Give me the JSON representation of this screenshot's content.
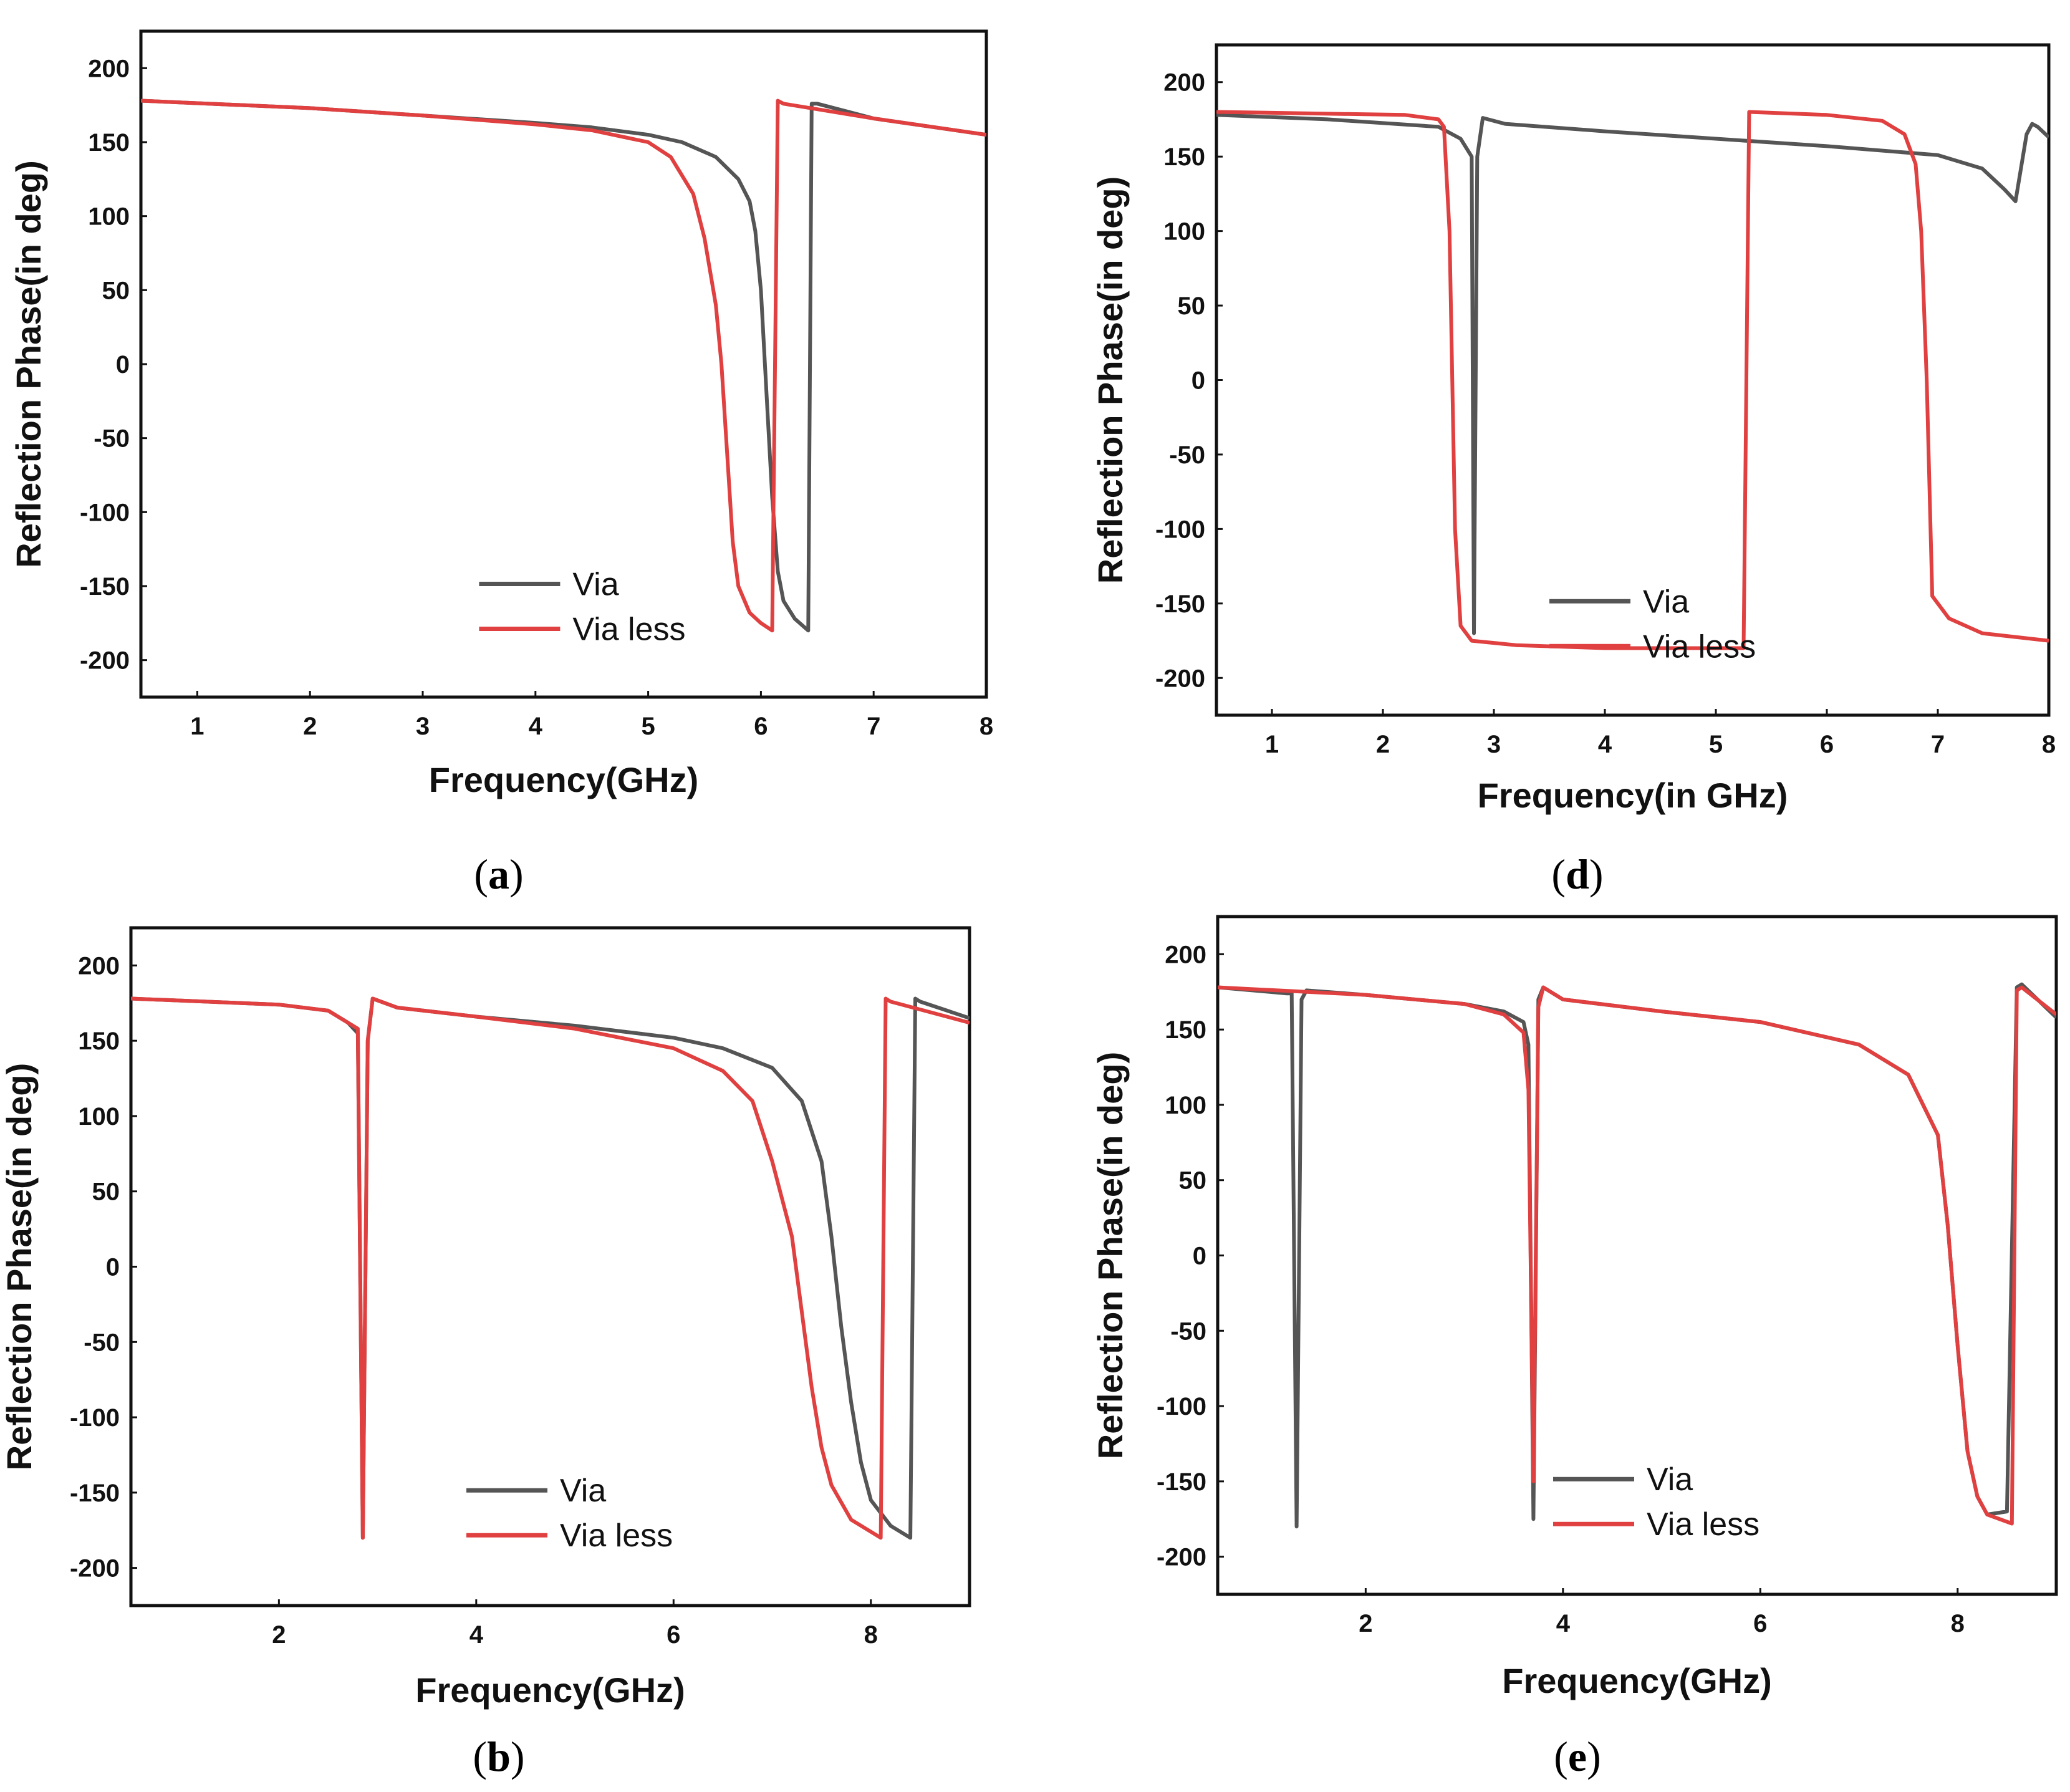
{
  "chart_data": [
    {
      "id": "a",
      "type": "line",
      "caption_letter": "a",
      "xlabel": "Frequency(GHz)",
      "ylabel": "Reflection Phase(in deg)",
      "xlim": [
        0.5,
        8
      ],
      "ylim": [
        -225,
        225
      ],
      "xticks": [
        1,
        2,
        3,
        4,
        5,
        6,
        7,
        8
      ],
      "yticks": [
        200,
        150,
        100,
        50,
        0,
        -50,
        -100,
        -150,
        -200
      ],
      "legend": "bottom-right",
      "series": [
        {
          "name": "Via",
          "color": "#555555",
          "x": [
            0.5,
            2,
            3,
            4,
            4.5,
            5,
            5.3,
            5.6,
            5.8,
            5.9,
            5.95,
            6.0,
            6.05,
            6.1,
            6.15,
            6.2,
            6.3,
            6.42,
            6.45,
            6.5,
            7,
            8
          ],
          "y": [
            178,
            173,
            168,
            163,
            160,
            155,
            150,
            140,
            125,
            110,
            90,
            50,
            -20,
            -90,
            -140,
            -160,
            -172,
            -180,
            176,
            176,
            166,
            155
          ]
        },
        {
          "name": "Via less",
          "color": "#e04040",
          "x": [
            0.5,
            2,
            3,
            4,
            4.5,
            5,
            5.2,
            5.4,
            5.5,
            5.6,
            5.65,
            5.7,
            5.75,
            5.8,
            5.9,
            6.0,
            6.1,
            6.15,
            6.2,
            7,
            8
          ],
          "y": [
            178,
            173,
            168,
            162,
            158,
            150,
            140,
            115,
            85,
            40,
            0,
            -60,
            -120,
            -150,
            -168,
            -175,
            -180,
            178,
            176,
            166,
            155
          ]
        }
      ]
    },
    {
      "id": "d",
      "type": "line",
      "caption_letter": "d",
      "xlabel": "Frequency(in GHz)",
      "ylabel": "Reflection Phase(in deg)",
      "xlim": [
        0.5,
        8
      ],
      "ylim": [
        -225,
        225
      ],
      "xticks": [
        1,
        2,
        3,
        4,
        5,
        6,
        7,
        8
      ],
      "yticks": [
        200,
        150,
        100,
        50,
        0,
        -50,
        -100,
        -150,
        -200
      ],
      "legend": "bottom-right",
      "series": [
        {
          "name": "Via",
          "color": "#555555",
          "x": [
            0.5,
            1.5,
            2.5,
            2.7,
            2.8,
            2.82,
            2.85,
            2.9,
            3.1,
            4,
            5,
            6,
            7,
            7.4,
            7.6,
            7.7,
            7.8,
            7.85,
            7.9,
            8
          ],
          "y": [
            178,
            175,
            170,
            162,
            150,
            -170,
            150,
            176,
            172,
            167,
            162,
            157,
            151,
            142,
            128,
            120,
            165,
            172,
            170,
            163
          ]
        },
        {
          "name": "Via less",
          "color": "#e04040",
          "x": [
            0.5,
            2.2,
            2.5,
            2.55,
            2.6,
            2.65,
            2.7,
            2.8,
            3.2,
            4,
            5,
            5.25,
            5.3,
            6,
            6.5,
            6.7,
            6.8,
            6.85,
            6.9,
            6.95,
            7.1,
            7.4,
            8
          ],
          "y": [
            180,
            178,
            175,
            170,
            100,
            -100,
            -165,
            -175,
            -178,
            -180,
            -180,
            -180,
            180,
            178,
            174,
            165,
            145,
            100,
            0,
            -145,
            -160,
            -170,
            -175
          ]
        }
      ]
    },
    {
      "id": "b",
      "type": "line",
      "caption_letter": "b",
      "xlabel": "Frequency(GHz)",
      "ylabel": "Reflection Phase(in deg)",
      "xlim": [
        0.5,
        9
      ],
      "ylim": [
        -225,
        225
      ],
      "xticks": [
        2,
        4,
        6,
        8
      ],
      "yticks": [
        200,
        150,
        100,
        50,
        0,
        -50,
        -100,
        -150,
        -200
      ],
      "legend": "bottom-right",
      "series": [
        {
          "name": "Via",
          "color": "#555555",
          "x": [
            0.5,
            2,
            2.5,
            2.7,
            2.8,
            2.85,
            2.9,
            2.95,
            3.2,
            4,
            5,
            6,
            6.5,
            7,
            7.3,
            7.5,
            7.6,
            7.7,
            7.8,
            7.9,
            8,
            8.2,
            8.4,
            8.45,
            8.5,
            9
          ],
          "y": [
            178,
            174,
            170,
            162,
            155,
            -180,
            150,
            178,
            172,
            166,
            160,
            152,
            145,
            132,
            110,
            70,
            20,
            -40,
            -90,
            -130,
            -155,
            -172,
            -180,
            178,
            176,
            165
          ]
        },
        {
          "name": "Via less",
          "color": "#e04040",
          "x": [
            0.5,
            2,
            2.5,
            2.7,
            2.8,
            2.85,
            2.9,
            2.95,
            3.2,
            4,
            5,
            6,
            6.5,
            6.8,
            7,
            7.2,
            7.3,
            7.4,
            7.5,
            7.6,
            7.8,
            8.1,
            8.15,
            8.2,
            9
          ],
          "y": [
            178,
            174,
            170,
            162,
            158,
            -180,
            150,
            178,
            172,
            166,
            158,
            145,
            130,
            110,
            70,
            20,
            -30,
            -80,
            -120,
            -145,
            -168,
            -180,
            178,
            176,
            162
          ]
        }
      ]
    },
    {
      "id": "e",
      "type": "line",
      "caption_letter": "e",
      "xlabel": "Frequency(GHz)",
      "ylabel": "Reflection Phase(in deg)",
      "xlim": [
        0.5,
        9
      ],
      "ylim": [
        -225,
        225
      ],
      "xticks": [
        2,
        4,
        6,
        8
      ],
      "yticks": [
        200,
        150,
        100,
        50,
        0,
        -50,
        -100,
        -150,
        -200
      ],
      "legend": "bottom-right",
      "series": [
        {
          "name": "Via",
          "color": "#555555",
          "x": [
            0.5,
            1.2,
            1.25,
            1.3,
            1.35,
            1.4,
            2,
            3,
            3.4,
            3.6,
            3.65,
            3.7,
            3.75,
            3.8,
            4,
            5,
            6,
            7,
            7.5,
            7.8,
            7.9,
            8,
            8.1,
            8.2,
            8.3,
            8.5,
            8.6,
            8.65,
            9
          ],
          "y": [
            178,
            174,
            174,
            -180,
            170,
            176,
            173,
            167,
            162,
            155,
            140,
            -175,
            170,
            178,
            170,
            162,
            155,
            140,
            120,
            80,
            20,
            -60,
            -130,
            -160,
            -172,
            -170,
            178,
            180,
            158
          ]
        },
        {
          "name": "Via less",
          "color": "#e04040",
          "x": [
            0.5,
            2,
            3,
            3.4,
            3.6,
            3.65,
            3.7,
            3.75,
            3.8,
            4,
            5,
            6,
            7,
            7.5,
            7.8,
            7.9,
            8,
            8.1,
            8.2,
            8.3,
            8.55,
            8.6,
            8.65,
            9
          ],
          "y": [
            178,
            173,
            167,
            160,
            148,
            110,
            -150,
            165,
            178,
            170,
            162,
            155,
            140,
            120,
            80,
            20,
            -60,
            -130,
            -160,
            -172,
            -178,
            176,
            178,
            160
          ]
        }
      ]
    }
  ]
}
